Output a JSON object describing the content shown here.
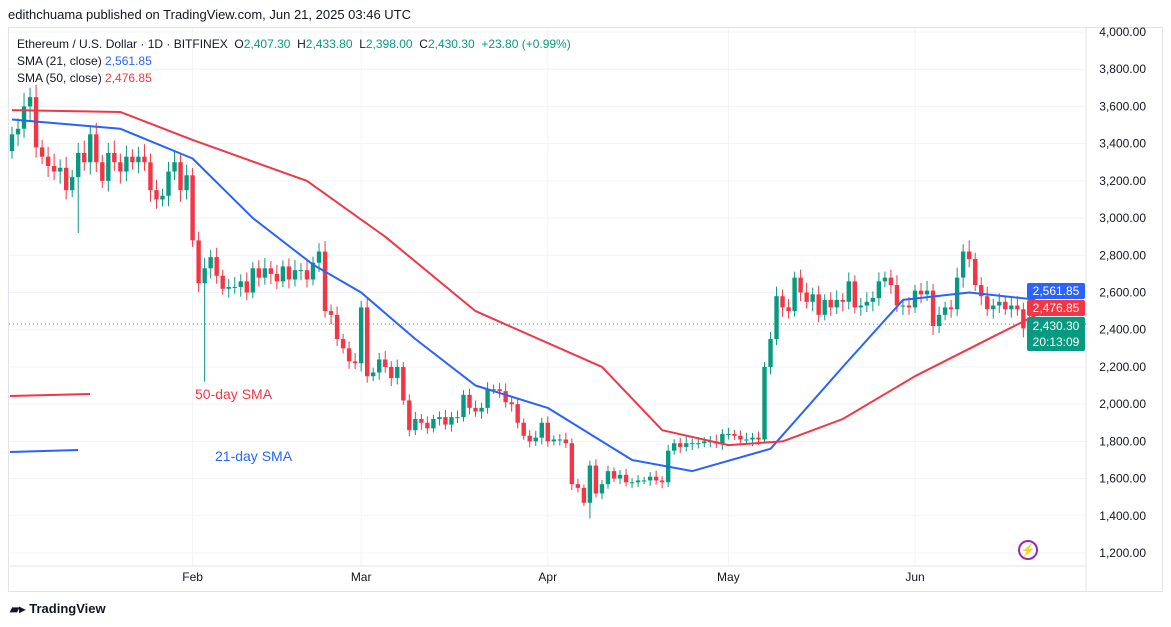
{
  "publisher_line": "edithchuama published on TradingView.com, Jun 21, 2025 03:46 UTC",
  "legend": {
    "symbol": "Ethereum / U.S. Dollar · 1D · BITFINEX",
    "o_label": "O",
    "o": "2,407.30",
    "h_label": "H",
    "h": "2,433.80",
    "l_label": "L",
    "l": "2,398.00",
    "c_label": "C",
    "c": "2,430.30",
    "change": "+23.80 (+0.99%)",
    "sma21_label": "SMA (21, close)",
    "sma21": "2,561.85",
    "sma50_label": "SMA (50, close)",
    "sma50": "2,476.85"
  },
  "tags": {
    "sma21": "2,561.85",
    "sma50": "2,476.85",
    "last": "2,430.30",
    "countdown": "20:13:09"
  },
  "annotations": {
    "sma50": "50-day SMA",
    "sma21": "21-day SMA"
  },
  "footer": {
    "brand": "TradingView"
  },
  "colors": {
    "up": "#089981",
    "down": "#f23645",
    "sma21": "#2962ff",
    "sma50": "#f23645",
    "grid": "#f0f3fa",
    "brand_icon": "#9c27b0"
  },
  "chart_data": {
    "type": "candlestick",
    "title": "Ethereum / U.S. Dollar · 1D · BITFINEX",
    "start_date": "2025-01-02",
    "end_date": "2025-06-21",
    "ylim": [
      1100,
      4050
    ],
    "y_ticks": [
      "4,000.00",
      "3,800.00",
      "3,600.00",
      "3,400.00",
      "3,200.00",
      "3,000.00",
      "2,800.00",
      "2,600.00",
      "2,400.00",
      "2,200.00",
      "2,000.00",
      "1,800.00",
      "1,600.00",
      "1,400.00",
      "1,200.00"
    ],
    "y_tick_values": [
      4000,
      3800,
      3600,
      3400,
      3200,
      3000,
      2800,
      2600,
      2400,
      2200,
      2000,
      1800,
      1600,
      1400,
      1200
    ],
    "x_ticks": [
      {
        "label": "Feb",
        "index": 30
      },
      {
        "label": "Mar",
        "index": 58
      },
      {
        "label": "Apr",
        "index": 89
      },
      {
        "label": "May",
        "index": 119
      },
      {
        "label": "Jun",
        "index": 150
      }
    ],
    "first_open": 3360,
    "closes": [
      3450,
      3480,
      3600,
      3650,
      3380,
      3330,
      3280,
      3250,
      3270,
      3150,
      3220,
      3350,
      3300,
      3450,
      3300,
      3200,
      3350,
      3300,
      3250,
      3330,
      3300,
      3330,
      3300,
      3150,
      3100,
      3120,
      3250,
      3300,
      3150,
      3230,
      2880,
      2650,
      2730,
      2790,
      2690,
      2620,
      2630,
      2630,
      2660,
      2600,
      2730,
      2680,
      2730,
      2700,
      2660,
      2740,
      2670,
      2720,
      2720,
      2670,
      2760,
      2820,
      2500,
      2480,
      2350,
      2300,
      2230,
      2220,
      2520,
      2150,
      2170,
      2240,
      2200,
      2140,
      2200,
      2020,
      1860,
      1920,
      1900,
      1870,
      1920,
      1930,
      1890,
      1930,
      1930,
      2050,
      1980,
      1960,
      1980,
      2080,
      2080,
      2070,
      2010,
      2000,
      1900,
      1830,
      1800,
      1820,
      1900,
      1800,
      1810,
      1810,
      1790,
      1570,
      1550,
      1470,
      1670,
      1520,
      1570,
      1640,
      1600,
      1620,
      1580,
      1580,
      1590,
      1590,
      1610,
      1590,
      1580,
      1750,
      1790,
      1770,
      1790,
      1790,
      1790,
      1800,
      1800,
      1790,
      1840,
      1840,
      1830,
      1810,
      1810,
      1820,
      1810,
      2200,
      2350,
      2580,
      2520,
      2500,
      2680,
      2600,
      2550,
      2590,
      2480,
      2560,
      2520,
      2560,
      2550,
      2660,
      2520,
      2530,
      2550,
      2570,
      2660,
      2680,
      2640,
      2530,
      2530,
      2520,
      2610,
      2590,
      2610,
      2420,
      2480,
      2520,
      2510,
      2680,
      2820,
      2780,
      2640,
      2580,
      2510,
      2530,
      2550,
      2510,
      2530,
      2510,
      2407,
      2430.3
    ],
    "notable_wicks": [
      {
        "index": 32,
        "low": 2120
      },
      {
        "index": 11,
        "low": 2920
      },
      {
        "index": 159,
        "high": 2880
      },
      {
        "index": 96,
        "low": 1385
      }
    ],
    "series": [
      {
        "name": "SMA (21, close)",
        "points": [
          [
            0,
            3530
          ],
          [
            18,
            3480
          ],
          [
            30,
            3320
          ],
          [
            40,
            3000
          ],
          [
            50,
            2750
          ],
          [
            58,
            2600
          ],
          [
            67,
            2350
          ],
          [
            77,
            2100
          ],
          [
            89,
            1980
          ],
          [
            103,
            1700
          ],
          [
            113,
            1640
          ],
          [
            126,
            1760
          ],
          [
            138,
            2200
          ],
          [
            148,
            2560
          ],
          [
            159,
            2600
          ],
          [
            170,
            2562
          ]
        ]
      },
      {
        "name": "SMA (50, close)",
        "points": [
          [
            0,
            3580
          ],
          [
            18,
            3570
          ],
          [
            30,
            3420
          ],
          [
            49,
            3200
          ],
          [
            62,
            2900
          ],
          [
            77,
            2500
          ],
          [
            98,
            2200
          ],
          [
            108,
            1860
          ],
          [
            119,
            1780
          ],
          [
            128,
            1800
          ],
          [
            138,
            1920
          ],
          [
            150,
            2150
          ],
          [
            161,
            2330
          ],
          [
            170,
            2477
          ]
        ]
      }
    ]
  }
}
